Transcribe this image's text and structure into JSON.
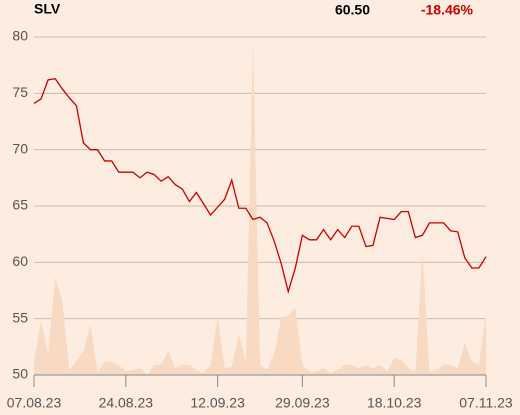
{
  "header": {
    "symbol": "SLV",
    "price": "60.50",
    "change": "-18.46%"
  },
  "chart_data": {
    "type": "line",
    "categories": [
      "07.08.23",
      null,
      null,
      null,
      null,
      null,
      null,
      null,
      null,
      null,
      null,
      null,
      null,
      "24.08.23",
      null,
      null,
      null,
      null,
      null,
      null,
      null,
      null,
      null,
      null,
      null,
      null,
      "12.09.23",
      null,
      null,
      null,
      null,
      null,
      null,
      null,
      null,
      null,
      null,
      null,
      "29.09.23",
      null,
      null,
      null,
      null,
      null,
      null,
      null,
      null,
      null,
      null,
      null,
      null,
      "18.10.23",
      null,
      null,
      null,
      null,
      null,
      null,
      null,
      null,
      null,
      null,
      null,
      null,
      "07.11.23"
    ],
    "series": [
      {
        "color": "#cc0000",
        "values": [
          74.1,
          74.5,
          76.2,
          76.3,
          75.4,
          74.6,
          73.9,
          70.6,
          70.0,
          70.0,
          69.0,
          69.0,
          68.0,
          68.0,
          68.0,
          67.5,
          68.0,
          67.8,
          67.2,
          67.6,
          66.9,
          66.5,
          65.4,
          66.2,
          65.2,
          64.2,
          64.9,
          65.6,
          67.3,
          64.8,
          64.8,
          63.8,
          64.0,
          63.5,
          61.9,
          59.9,
          57.4,
          59.5,
          62.4,
          62.0,
          62.0,
          62.9,
          62.0,
          62.9,
          62.2,
          63.2,
          63.2,
          61.4,
          61.5,
          64.0,
          63.9,
          63.8,
          64.5,
          64.5,
          62.2,
          62.4,
          63.5,
          63.5,
          63.5,
          62.8,
          62.7,
          60.4,
          59.5,
          59.5,
          60.5
        ]
      },
      {
        "type": "area",
        "axis": "y2",
        "color": "#f8d9c2",
        "values": [
          4,
          16,
          6,
          29,
          22,
          1.5,
          4,
          7,
          15,
          1,
          4,
          4,
          3,
          1,
          1.5,
          2,
          0,
          3,
          3,
          7,
          2,
          3,
          3,
          1.5,
          0.6,
          3,
          17,
          2,
          2.4,
          12,
          4,
          99,
          3,
          1.5,
          6,
          17,
          17.5,
          20,
          3,
          1,
          1,
          2,
          0.6,
          1.5,
          3,
          3,
          2,
          3,
          2,
          3,
          1,
          5,
          4.4,
          2,
          1,
          36,
          1,
          1.5,
          3,
          3,
          2,
          9.5,
          4,
          3,
          18
        ]
      }
    ],
    "ylim": [
      50,
      80
    ],
    "yticks": [
      50,
      55,
      60,
      65,
      70,
      75,
      80
    ],
    "y2lim": [
      0,
      100
    ],
    "grid": true
  }
}
